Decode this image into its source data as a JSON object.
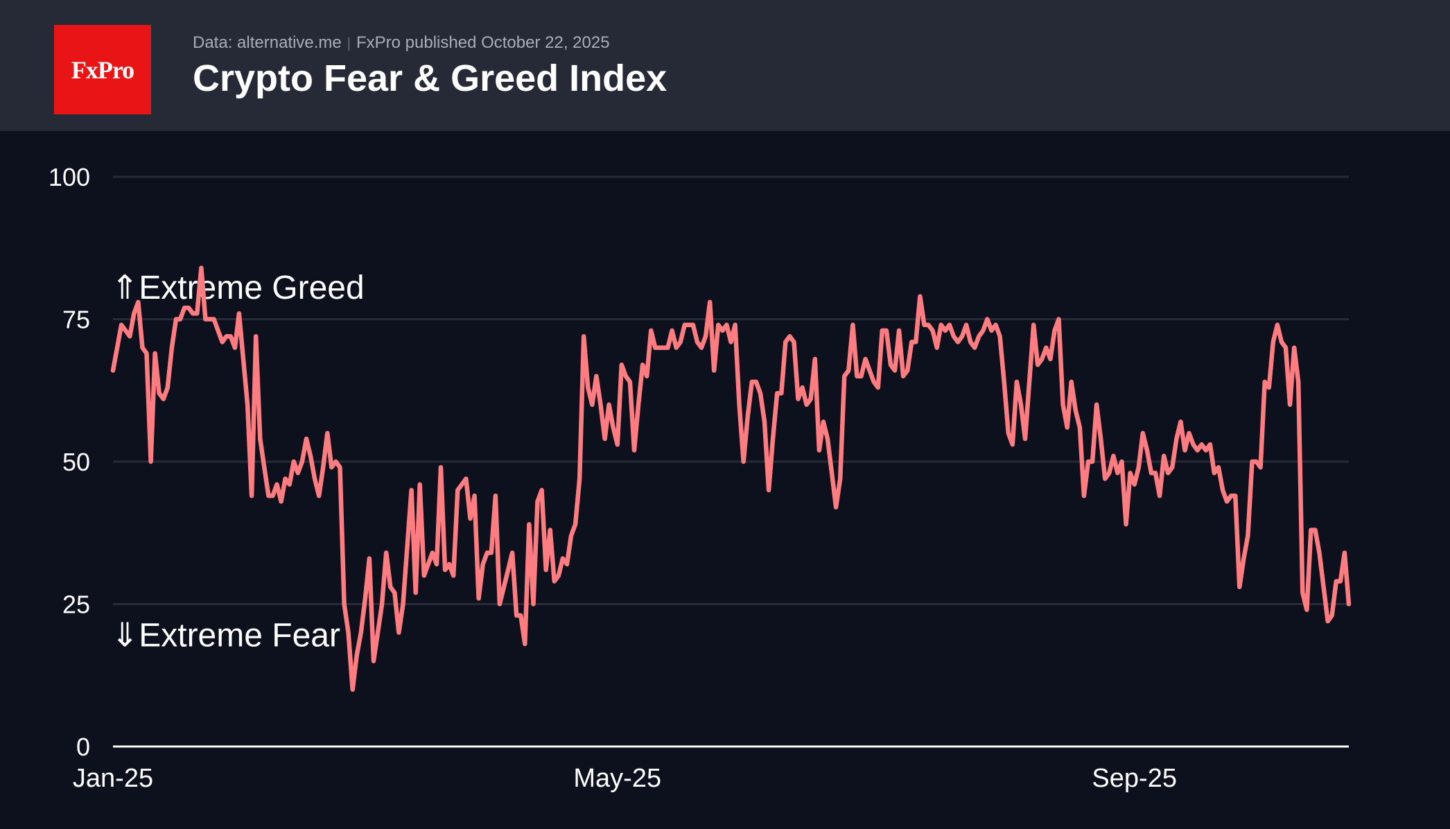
{
  "brand": {
    "logo_text": "FxPro",
    "logo_color": "#e81416"
  },
  "header": {
    "source": "Data: alternative.me",
    "published": "FxPro published October 22, 2025",
    "title": "Crypto Fear & Greed Index"
  },
  "chart_data": {
    "type": "line",
    "title": "Crypto Fear & Greed Index",
    "xlabel": "",
    "ylabel": "",
    "ylim": [
      0,
      100
    ],
    "yticks": [
      0,
      25,
      50,
      75,
      100
    ],
    "xticks": [
      {
        "label": "Jan-25",
        "date": "2025-01-01"
      },
      {
        "label": "May-25",
        "date": "2025-05-01"
      },
      {
        "label": "Sep-25",
        "date": "2025-09-01"
      }
    ],
    "x_range": [
      "2025-01-01",
      "2025-10-22"
    ],
    "grid": true,
    "annotations": [
      {
        "text": "⇑Extreme Greed",
        "y": 81
      },
      {
        "text": "⇓Extreme Fear",
        "y": 20
      }
    ],
    "series_color": "#ff7c80",
    "series": [
      {
        "x_start": "2025-01-01",
        "step_days": 1,
        "values": [
          66,
          70,
          74,
          73,
          72,
          76,
          78,
          70,
          69,
          50,
          69,
          62,
          61,
          63,
          70,
          75,
          75,
          77,
          77,
          76,
          76,
          84,
          75,
          75,
          75,
          73,
          71,
          72,
          72,
          70,
          76,
          68,
          60,
          44,
          72,
          54,
          49,
          44,
          44,
          46,
          43,
          47,
          46,
          50,
          48,
          50,
          54,
          51,
          47,
          44,
          49,
          55,
          49,
          50,
          49,
          25,
          20,
          10,
          16,
          20,
          26,
          33,
          15,
          20,
          25,
          34,
          28,
          27,
          20,
          25,
          35,
          45,
          27,
          46,
          30,
          32,
          34,
          32,
          49,
          31,
          32,
          30,
          45,
          46,
          47,
          40,
          44,
          26,
          32,
          34,
          34,
          44,
          25,
          28,
          31,
          34,
          23,
          23,
          18,
          39,
          25,
          43,
          45,
          31,
          38,
          29,
          30,
          33,
          32,
          37,
          39,
          47,
          72,
          63,
          60,
          65,
          60,
          54,
          60,
          56,
          53,
          67,
          65,
          64,
          52,
          60,
          67,
          65,
          73,
          70,
          70,
          70,
          70,
          73,
          70,
          71,
          74,
          74,
          74,
          71,
          70,
          72,
          78,
          66,
          74,
          73,
          74,
          71,
          74,
          60,
          50,
          58,
          64,
          64,
          62,
          57,
          45,
          54,
          62,
          62,
          71,
          72,
          71,
          61,
          63,
          60,
          61,
          68,
          52,
          57,
          54,
          48,
          42,
          47,
          65,
          66,
          74,
          65,
          65,
          68,
          66,
          64,
          63,
          73,
          73,
          67,
          66,
          73,
          65,
          66,
          71,
          71,
          79,
          74,
          74,
          73,
          70,
          74,
          73,
          74,
          72,
          71,
          72,
          74,
          71,
          70,
          72,
          73,
          75,
          73,
          74,
          72,
          64,
          55,
          53,
          64,
          60,
          54,
          64,
          74,
          67,
          68,
          70,
          68,
          73,
          75,
          60,
          56,
          64,
          59,
          56,
          44,
          50,
          50,
          60,
          54,
          47,
          48,
          51,
          48,
          50,
          39,
          48,
          46,
          49,
          55,
          52,
          48,
          48,
          44,
          51,
          48,
          49,
          54,
          57,
          52,
          55,
          53,
          52,
          53,
          52,
          53,
          48,
          49,
          45,
          43,
          44,
          44,
          28,
          33,
          37,
          50,
          50,
          49,
          64,
          63,
          71,
          74,
          71,
          70,
          60,
          70,
          64,
          27,
          24,
          38,
          38,
          34,
          28,
          22,
          23,
          29,
          29,
          34,
          25
        ]
      }
    ]
  }
}
